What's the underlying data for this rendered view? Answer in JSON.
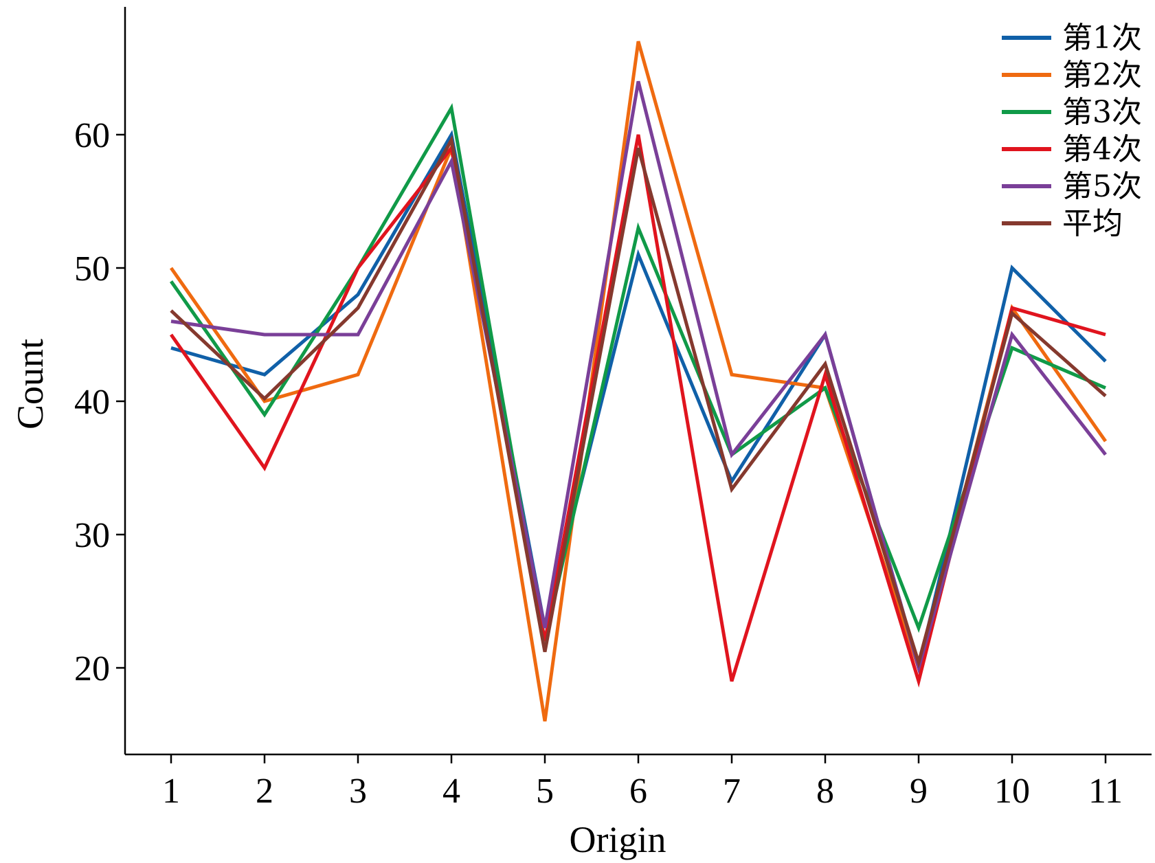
{
  "chart_data": {
    "type": "line",
    "xlabel": "Origin",
    "ylabel": "Count",
    "x": [
      1,
      2,
      3,
      4,
      5,
      6,
      7,
      8,
      9,
      10,
      11
    ],
    "ylim": [
      13.5,
      70
    ],
    "yticks": [
      20,
      30,
      40,
      50,
      60
    ],
    "grid": false,
    "legend_position": "top-right",
    "series": [
      {
        "name": "第1次",
        "color": "#1060a8",
        "values": [
          44,
          42,
          48,
          60,
          23,
          51,
          34,
          45,
          20,
          50,
          43
        ]
      },
      {
        "name": "第2次",
        "color": "#ef6a10",
        "values": [
          50,
          40,
          42,
          59,
          16,
          67,
          42,
          41,
          20,
          47,
          37
        ]
      },
      {
        "name": "第3次",
        "color": "#109a48",
        "values": [
          49,
          39,
          50,
          62,
          22,
          53,
          36,
          41,
          23,
          44,
          41
        ]
      },
      {
        "name": "第4次",
        "color": "#e0141e",
        "values": [
          45,
          35,
          50,
          59,
          22,
          60,
          19,
          42,
          19,
          47,
          45
        ]
      },
      {
        "name": "第5次",
        "color": "#7a3f98",
        "values": [
          46,
          45,
          45,
          58,
          23,
          64,
          36,
          45,
          20,
          45,
          36
        ]
      },
      {
        "name": "平均",
        "color": "#85392e",
        "values": [
          46.8,
          40.2,
          47,
          59.6,
          21.2,
          59,
          33.4,
          42.8,
          20.4,
          46.6,
          40.4
        ]
      }
    ]
  }
}
